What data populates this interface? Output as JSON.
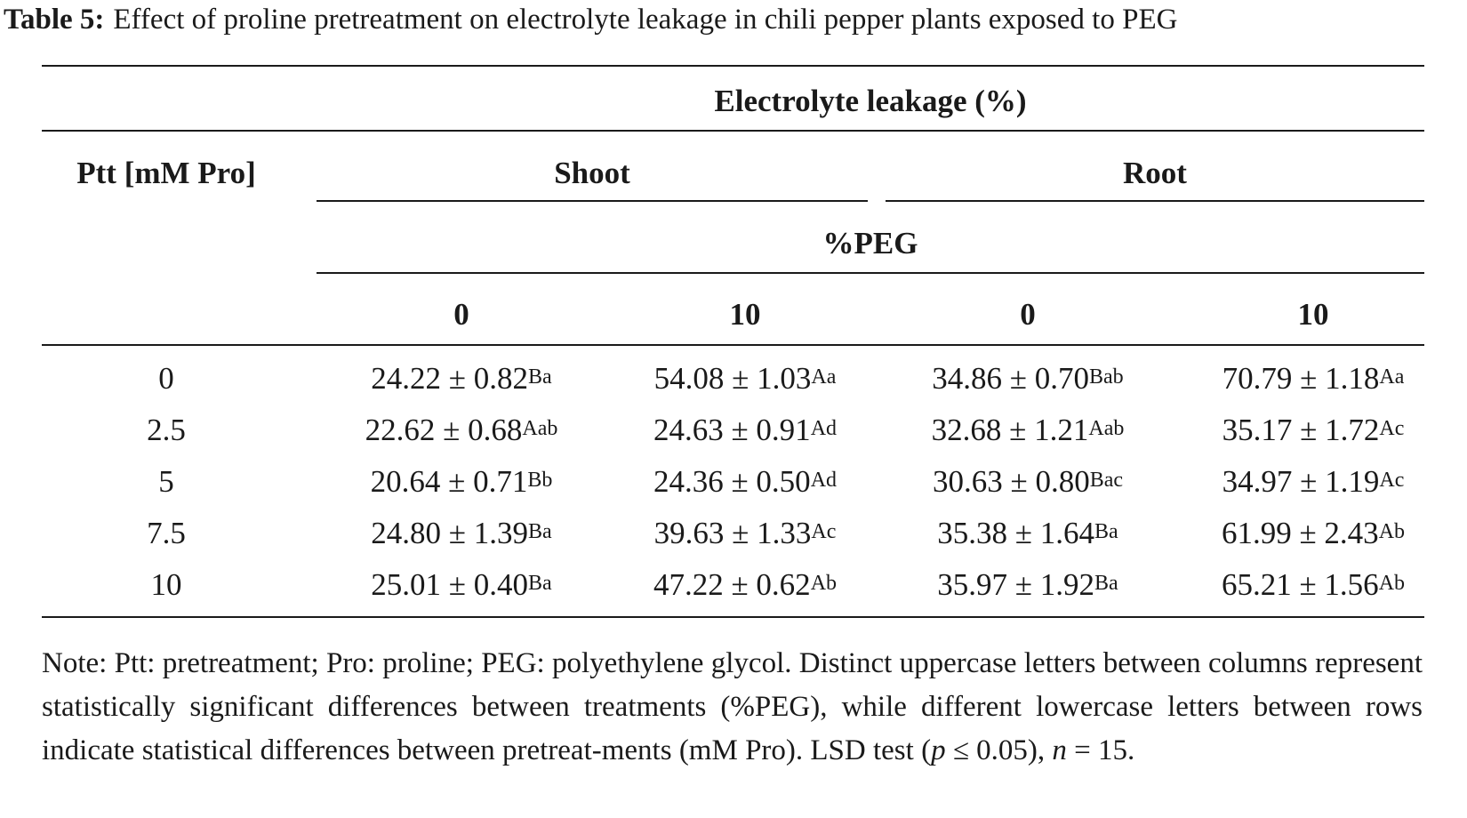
{
  "caption": {
    "label": "Table 5:",
    "text": "Effect of proline pretreatment on electrolyte leakage in chili pepper plants exposed to PEG"
  },
  "header": {
    "group": "Electrolyte leakage (%)",
    "row_label": "Ptt [mM Pro]",
    "shoot": "Shoot",
    "root": "Root",
    "peg": "%PEG",
    "levels": [
      "0",
      "10",
      "0",
      "10"
    ]
  },
  "rows": [
    {
      "ptt": "0",
      "cells": [
        {
          "v": "24.22 ± 0.82",
          "s": "Ba"
        },
        {
          "v": "54.08 ± 1.03",
          "s": "Aa"
        },
        {
          "v": "34.86 ± 0.70",
          "s": "Bab"
        },
        {
          "v": "70.79 ± 1.18",
          "s": "Aa"
        }
      ]
    },
    {
      "ptt": "2.5",
      "cells": [
        {
          "v": "22.62 ± 0.68",
          "s": "Aab"
        },
        {
          "v": "24.63 ± 0.91",
          "s": "Ad"
        },
        {
          "v": "32.68 ± 1.21",
          "s": "Aab"
        },
        {
          "v": "35.17 ± 1.72",
          "s": "Ac"
        }
      ]
    },
    {
      "ptt": "5",
      "cells": [
        {
          "v": "20.64 ± 0.71",
          "s": "Bb"
        },
        {
          "v": "24.36 ± 0.50",
          "s": "Ad"
        },
        {
          "v": "30.63 ± 0.80",
          "s": "Bac"
        },
        {
          "v": "34.97 ± 1.19",
          "s": "Ac"
        }
      ]
    },
    {
      "ptt": "7.5",
      "cells": [
        {
          "v": "24.80 ± 1.39",
          "s": "Ba"
        },
        {
          "v": "39.63 ± 1.33",
          "s": "Ac"
        },
        {
          "v": "35.38 ± 1.64",
          "s": "Ba"
        },
        {
          "v": "61.99 ± 2.43",
          "s": "Ab"
        }
      ]
    },
    {
      "ptt": "10",
      "cells": [
        {
          "v": "25.01 ± 0.40",
          "s": "Ba"
        },
        {
          "v": "47.22 ± 0.62",
          "s": "Ab"
        },
        {
          "v": "35.97 ± 1.92",
          "s": "Ba"
        },
        {
          "v": "65.21 ± 1.56",
          "s": "Ab"
        }
      ]
    }
  ],
  "note": {
    "text1": "Note: Ptt: pretreatment; Pro: proline; PEG: polyethylene glycol. Distinct uppercase letters between columns represent statistically significant differences between treatments (%PEG), while different lowercase letters between rows indicate statistical differences between pretreat-ments (mM Pro). LSD test (",
    "p": "p",
    "text2": " ≤ 0.05), ",
    "n": "n",
    "text3": " = 15."
  }
}
